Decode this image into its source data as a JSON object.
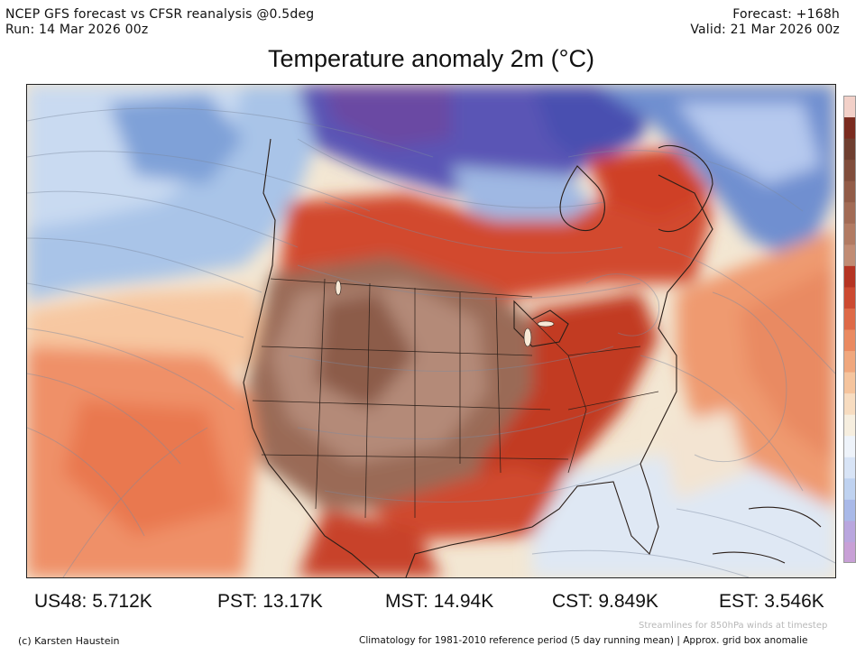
{
  "header": {
    "source_line": "NCEP GFS forecast vs CFSR reanalysis @0.5deg",
    "run_line": "Run: 14 Mar 2026 00z",
    "forecast_line": "Forecast: +168h",
    "valid_line": "Valid: 21 Mar 2026 00z"
  },
  "map": {
    "title": "Temperature anomaly 2m (°C)",
    "region": "North America",
    "features": [
      "temperature-anomaly-shading",
      "850hPa-streamlines",
      "state-borders",
      "coastlines"
    ]
  },
  "stats": [
    {
      "label": "US48:",
      "value": "5.712K"
    },
    {
      "label": "PST:",
      "value": "13.17K"
    },
    {
      "label": "MST:",
      "value": "14.94K"
    },
    {
      "label": "CST:",
      "value": "9.849K"
    },
    {
      "label": "EST:",
      "value": "3.546K"
    }
  ],
  "footer": {
    "credit": "(c) Karsten Haustein",
    "streamlines_note": "Streamlines for 850hPa winds at timestep",
    "climatology_note": "Climatology for 1981-2010 reference period (5 day running mean) | Approx. grid box anomalie"
  },
  "colors": {
    "strong_warm": "#8a4a35",
    "warm_brown": "#a8775e",
    "red": "#c23a22",
    "orange": "#ec7f55",
    "light_orange": "#f7c8a2",
    "neutral": "#f4ead6",
    "light_blue": "#dfe9f6",
    "blue": "#8aaddb",
    "dark_blue": "#4f5fb8",
    "purple": "#5b3f95"
  },
  "colorbar_colors": [
    "#c8a0d6",
    "#b9a6de",
    "#a9b9e8",
    "#bfd2f0",
    "#d8e4f6",
    "#eef3fa",
    "#f6eedf",
    "#f7dcc0",
    "#f5c49d",
    "#f0a77d",
    "#ea8a61",
    "#de6a48",
    "#cc4a31",
    "#b53423",
    "#c18c74",
    "#b27b63",
    "#a26b55",
    "#925c48",
    "#814e3c",
    "#6f3f30",
    "#7a2b1f",
    "#f2d0c8"
  ]
}
